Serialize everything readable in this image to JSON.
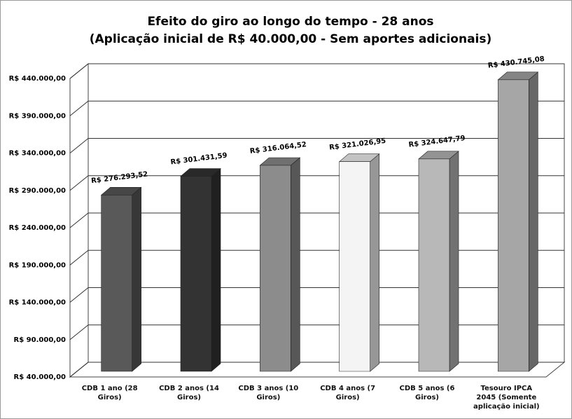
{
  "chart_data": {
    "type": "bar3d",
    "title": "Efeito do giro ao longo do tempo - 28 anos",
    "subtitle": "(Aplicação inicial de R$ 40.000,00 - Sem aportes adicionais)",
    "categories": [
      "CDB 1 ano (28 Giros)",
      "CDB 2 anos (14 Giros)",
      "CDB 3 anos (10 Giros)",
      "CDB 4 anos (7 Giros)",
      "CDB 5 anos (6 Giros)",
      "Tesouro IPCA 2045 (Somente aplicação inicial)"
    ],
    "values": [
      276293.52,
      301431.59,
      316064.52,
      321026.95,
      324647.79,
      430745.08
    ],
    "value_labels": [
      "R$ 276.293,52",
      "R$ 301.431,59",
      "R$ 316.064,52",
      "R$ 321.026,95",
      "R$ 324.647,79",
      "R$ 430.745,08"
    ],
    "colors": [
      "#595959",
      "#333333",
      "#8c8c8c",
      "#f4f4f4",
      "#b8b8b8",
      "#a6a6a6"
    ],
    "ylim": [
      40000,
      440000
    ],
    "yticks": [
      {
        "value": 40000,
        "label": "R$ 40.000,00"
      },
      {
        "value": 90000,
        "label": "R$ 90.000,00"
      },
      {
        "value": 140000,
        "label": "R$ 140.000,00"
      },
      {
        "value": 190000,
        "label": "R$ 190.000,00"
      },
      {
        "value": 240000,
        "label": "R$ 240.000,00"
      },
      {
        "value": 290000,
        "label": "R$ 290.000,00"
      },
      {
        "value": 340000,
        "label": "R$ 340.000,00"
      },
      {
        "value": 390000,
        "label": "R$ 390.000,00"
      },
      {
        "value": 440000,
        "label": "R$ 440.000,00"
      }
    ],
    "grid": true
  }
}
